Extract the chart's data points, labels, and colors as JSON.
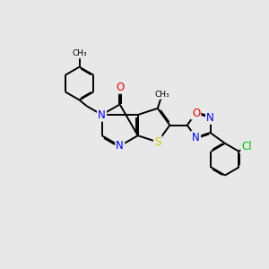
{
  "background_color": "#e8e8e8",
  "bond_color": "#000000",
  "bond_width": 1.4,
  "atom_colors": {
    "N": "#0000ee",
    "O": "#ee0000",
    "S": "#cccc00",
    "Cl": "#00bb00",
    "C": "#000000"
  },
  "font_size_atom": 8.5,
  "font_size_small": 7.0,
  "font_size_ch3": 6.5
}
